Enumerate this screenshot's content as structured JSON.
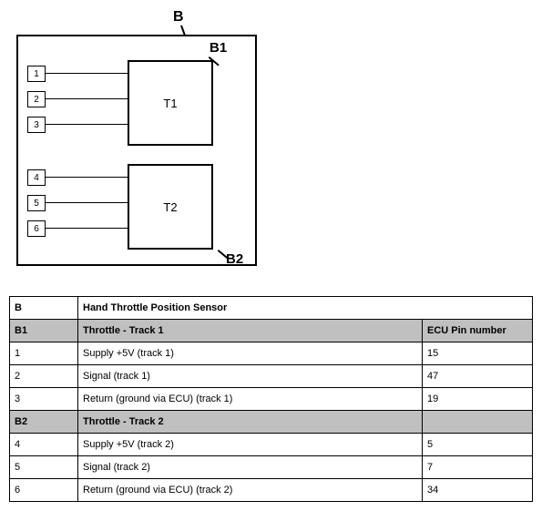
{
  "diagram": {
    "outer_label": "B",
    "group1_label": "B1",
    "group2_label": "B2",
    "box1_label": "T1",
    "box2_label": "T2",
    "pins": [
      "1",
      "2",
      "3",
      "4",
      "5",
      "6"
    ]
  },
  "table": {
    "title_row": {
      "key": "B",
      "desc": "Hand Throttle Position Sensor"
    },
    "header_row_1": {
      "key": "B1",
      "desc": "Throttle - Track 1",
      "ecu": "ECU Pin number"
    },
    "rows_1": [
      {
        "key": "1",
        "desc": "Supply +5V (track 1)",
        "ecu": "15"
      },
      {
        "key": "2",
        "desc": "Signal (track 1)",
        "ecu": "47"
      },
      {
        "key": "3",
        "desc": "Return (ground via ECU) (track 1)",
        "ecu": "19"
      }
    ],
    "header_row_2": {
      "key": "B2",
      "desc": "Throttle - Track 2",
      "ecu": ""
    },
    "rows_2": [
      {
        "key": "4",
        "desc": "Supply +5V (track 2)",
        "ecu": "5"
      },
      {
        "key": "5",
        "desc": "Signal (track 2)",
        "ecu": "7"
      },
      {
        "key": "6",
        "desc": "Return (ground via ECU) (track 2)",
        "ecu": "34"
      }
    ],
    "header_bg": "#c0c0c0"
  }
}
